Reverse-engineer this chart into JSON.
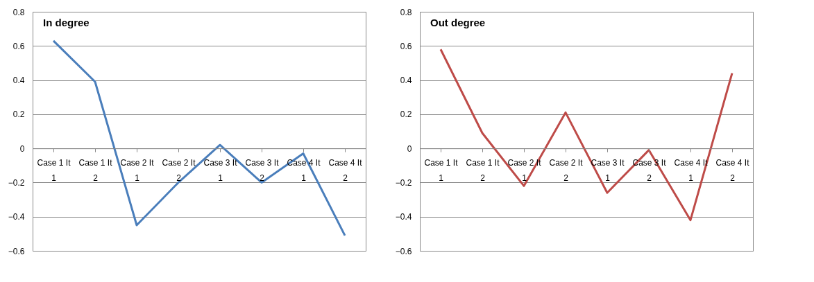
{
  "chart_data": [
    {
      "type": "line",
      "title": "In degree",
      "categories": [
        "Case 1 It 1",
        "Case 1 It 2",
        "Case 2 It 1",
        "Case 2 It 2",
        "Case 3 It 1",
        "Case 3 It 2",
        "Case 4 It 1",
        "Case 4 It 2"
      ],
      "series": [
        {
          "color": "#4a7ebb",
          "values": [
            0.63,
            0.39,
            -0.45,
            -0.2,
            0.02,
            -0.2,
            -0.03,
            -0.51
          ]
        }
      ],
      "ylim": [
        -0.6,
        0.8
      ],
      "yticks": [
        -0.6,
        -0.4,
        -0.2,
        0,
        0.2,
        0.4,
        0.6,
        0.8
      ],
      "grid": "y"
    },
    {
      "type": "line",
      "title": "Out degree",
      "categories": [
        "Case 1 It 1",
        "Case 1 It 2",
        "Case 2 It 1",
        "Case 2 It 2",
        "Case 3 It 1",
        "Case 3 It 2",
        "Case 4 It 1",
        "Case 4 It 2"
      ],
      "series": [
        {
          "color": "#be4b48",
          "values": [
            0.58,
            0.09,
            -0.22,
            0.21,
            -0.26,
            -0.01,
            -0.42,
            0.44
          ]
        }
      ],
      "ylim": [
        -0.6,
        0.8
      ],
      "yticks": [
        -0.6,
        -0.4,
        -0.2,
        0,
        0.2,
        0.4,
        0.6,
        0.8
      ],
      "grid": "y"
    }
  ]
}
